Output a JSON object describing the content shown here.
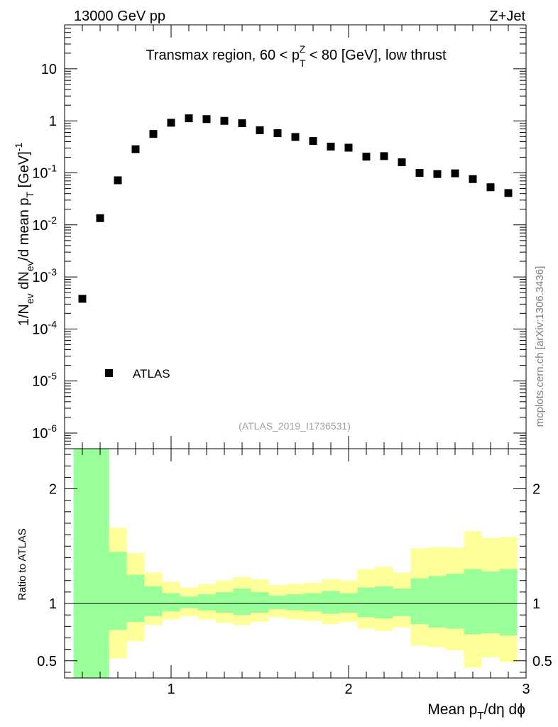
{
  "header": {
    "energy_label": "13000 GeV pp",
    "process_label": "Z+Jet"
  },
  "side_label": "mcplots.cern.ch [arXiv:1306.3436]",
  "chart_data": [
    {
      "type": "scatter",
      "panel": "main",
      "title": {
        "pre": "Transmax region, 60 < p",
        "sub": "T",
        "sup": "Z",
        "post": " < 80 [GeV], low thrust"
      },
      "ylabel": {
        "p1": "1/N",
        "s1": "ev",
        "p2": " dN",
        "s2": "ev",
        "p3": "/d mean p",
        "s3": "T",
        "p4": " [GeV]",
        "sup": "-1"
      },
      "yscale": "log",
      "ylim": [
        5e-07,
        70
      ],
      "xlim": [
        0.4,
        3.0
      ],
      "y_tick_labels": [
        {
          "base": "10",
          "exp": "-6",
          "value": 1e-06
        },
        {
          "base": "10",
          "exp": "-5",
          "value": 1e-05
        },
        {
          "base": "10",
          "exp": "-4",
          "value": 0.0001
        },
        {
          "base": "10",
          "exp": "-3",
          "value": 0.001
        },
        {
          "base": "10",
          "exp": "-2",
          "value": 0.01
        },
        {
          "base": "10",
          "exp": "-1",
          "value": 0.1
        },
        {
          "base": "1",
          "exp": "",
          "value": 1
        },
        {
          "base": "10",
          "exp": "",
          "value": 10
        }
      ],
      "legend": {
        "label": "ATLAS",
        "position": "bottom-left"
      },
      "watermark": "(ATLAS_2019_I1736531)",
      "series": [
        {
          "name": "ATLAS",
          "x": [
            0.5,
            0.6,
            0.7,
            0.8,
            0.9,
            1.0,
            1.1,
            1.2,
            1.3,
            1.4,
            1.5,
            1.6,
            1.7,
            1.8,
            1.9,
            2.0,
            2.1,
            2.2,
            2.3,
            2.4,
            2.5,
            2.6,
            2.7,
            2.8,
            2.9
          ],
          "y": [
            0.00038,
            0.0135,
            0.072,
            0.285,
            0.56,
            0.92,
            1.12,
            1.08,
            1.0,
            0.9,
            0.66,
            0.58,
            0.49,
            0.41,
            0.32,
            0.305,
            0.205,
            0.21,
            0.16,
            0.1,
            0.095,
            0.098,
            0.076,
            0.053,
            0.041
          ]
        }
      ]
    },
    {
      "type": "area",
      "panel": "ratio",
      "ylabel": "Ratio to ATLAS",
      "xlabel": {
        "p1": "Mean p",
        "s1": "T",
        "p2": "/dη dϕ"
      },
      "ylim": [
        0.35,
        2.35
      ],
      "xlim": [
        0.4,
        3.0
      ],
      "x_ticks": [
        "1",
        "2",
        "3"
      ],
      "y_ticks": [
        "0.5",
        "1",
        "2"
      ],
      "reference_line": 1,
      "bins": [
        0.45,
        0.55,
        0.65,
        0.75,
        0.85,
        0.95,
        1.05,
        1.15,
        1.25,
        1.35,
        1.45,
        1.55,
        1.65,
        1.75,
        1.85,
        1.95,
        2.05,
        2.15,
        2.25,
        2.35,
        2.45,
        2.55,
        2.65,
        2.75,
        2.85,
        2.95
      ],
      "series": [
        {
          "name": "stat uncertainty",
          "color": "#99ff99",
          "upper": [
            2.6,
            2.6,
            1.45,
            1.25,
            1.15,
            1.09,
            1.06,
            1.08,
            1.1,
            1.13,
            1.1,
            1.07,
            1.08,
            1.09,
            1.11,
            1.09,
            1.14,
            1.15,
            1.13,
            1.22,
            1.24,
            1.26,
            1.3,
            1.28,
            1.3
          ],
          "lower": [
            0.35,
            0.35,
            0.77,
            0.84,
            0.89,
            0.93,
            0.96,
            0.94,
            0.92,
            0.9,
            0.92,
            0.95,
            0.94,
            0.93,
            0.91,
            0.92,
            0.88,
            0.87,
            0.89,
            0.82,
            0.79,
            0.78,
            0.73,
            0.74,
            0.72
          ]
        },
        {
          "name": "total uncertainty",
          "color": "#ffff99",
          "upper": [
            2.6,
            2.6,
            1.66,
            1.44,
            1.27,
            1.19,
            1.14,
            1.17,
            1.2,
            1.23,
            1.21,
            1.16,
            1.17,
            1.18,
            1.21,
            1.2,
            1.3,
            1.32,
            1.27,
            1.48,
            1.49,
            1.49,
            1.63,
            1.57,
            1.58
          ],
          "lower": [
            0.35,
            0.35,
            0.52,
            0.67,
            0.81,
            0.86,
            0.89,
            0.86,
            0.83,
            0.81,
            0.84,
            0.88,
            0.86,
            0.85,
            0.82,
            0.84,
            0.78,
            0.76,
            0.79,
            0.63,
            0.62,
            0.59,
            0.44,
            0.53,
            0.49
          ]
        }
      ]
    }
  ]
}
